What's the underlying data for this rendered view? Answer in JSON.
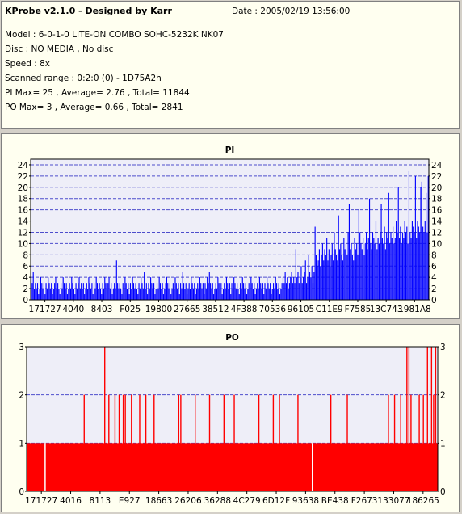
{
  "info": {
    "title": "KProbe v2.1.0 - Designed by Karr",
    "date": "Date : 2005/02/19 13:56:00",
    "lines": [
      "Model : 6-0-1-0 LITE-ON COMBO SOHC-5232K NK07",
      "Disc : NO MEDIA , No disc",
      "Speed : 8x",
      "Scanned range : 0:2:0 (0) - 1D75A2h",
      "PI Max= 25 , Average= 2.76 , Total= 11844",
      "PO Max= 3 , Average= 0.66 , Total= 2841"
    ]
  },
  "colors": {
    "pi": "#0000ff",
    "po": "#ff0000",
    "plot_bg": "#eeeef8",
    "grid": "#4d4dcc",
    "panel_bg": "#fffff0"
  },
  "chart_data": [
    {
      "type": "bar",
      "title": "PI",
      "ylim": [
        0,
        25
      ],
      "yticks": [
        0,
        2,
        4,
        6,
        8,
        10,
        12,
        14,
        16,
        18,
        20,
        22,
        24
      ],
      "xtick_labels": [
        "171727",
        "4040",
        "8403",
        "F025",
        "19800",
        "27665",
        "38512",
        "4F388",
        "70536",
        "96105",
        "C11E9",
        "F7585",
        "13C743",
        "1981A8"
      ],
      "grid": true,
      "values": [
        4,
        3,
        5,
        2,
        3,
        2,
        3,
        1,
        2,
        4,
        3,
        2,
        3,
        1,
        3,
        2,
        4,
        3,
        2,
        3,
        1,
        2,
        3,
        4,
        2,
        3,
        2,
        1,
        3,
        2,
        4,
        3,
        2,
        3,
        1,
        2,
        3,
        2,
        4,
        3,
        2,
        1,
        3,
        2,
        3,
        4,
        2,
        3,
        2,
        3,
        1,
        2,
        3,
        2,
        4,
        3,
        2,
        3,
        1,
        3,
        2,
        4,
        3,
        2,
        3,
        2,
        1,
        3,
        2,
        4,
        3,
        2,
        3,
        4,
        2,
        3,
        1,
        2,
        3,
        2,
        7,
        3,
        2,
        3,
        2,
        1,
        3,
        2,
        4,
        3,
        2,
        3,
        1,
        3,
        2,
        4,
        3,
        2,
        3,
        2,
        1,
        3,
        2,
        4,
        3,
        2,
        5,
        2,
        3,
        1,
        3,
        2,
        4,
        3,
        2,
        3,
        1,
        2,
        3,
        2,
        4,
        3,
        2,
        3,
        1,
        2,
        3,
        4,
        3,
        2,
        3,
        1,
        2,
        3,
        2,
        4,
        3,
        2,
        3,
        1,
        3,
        2,
        5,
        3,
        2,
        3,
        1,
        2,
        3,
        2,
        4,
        3,
        2,
        3,
        1,
        2,
        3,
        2,
        4,
        3,
        2,
        3,
        1,
        3,
        2,
        4,
        3,
        5,
        3,
        2,
        3,
        1,
        2,
        3,
        2,
        4,
        3,
        2,
        3,
        1,
        2,
        3,
        2,
        4,
        3,
        2,
        3,
        1,
        3,
        2,
        4,
        3,
        2,
        3,
        2,
        1,
        3,
        2,
        4,
        3,
        2,
        3,
        1,
        2,
        3,
        2,
        4,
        3,
        2,
        3,
        1,
        2,
        3,
        2,
        4,
        3,
        2,
        3,
        1,
        3,
        2,
        4,
        3,
        2,
        3,
        1,
        2,
        3,
        2,
        4,
        3,
        2,
        3,
        1,
        2,
        3,
        4,
        3,
        5,
        3,
        4,
        2,
        3,
        4,
        5,
        3,
        4,
        3,
        9,
        4,
        5,
        3,
        4,
        6,
        3,
        4,
        5,
        7,
        3,
        4,
        8,
        5,
        4,
        6,
        3,
        5,
        13,
        8,
        6,
        7,
        9,
        6,
        8,
        10,
        7,
        9,
        8,
        11,
        7,
        9,
        6,
        8,
        10,
        7,
        12,
        9,
        8,
        7,
        15,
        9,
        10,
        8,
        7,
        11,
        9,
        10,
        8,
        12,
        17,
        9,
        10,
        8,
        7,
        11,
        9,
        10,
        8,
        16,
        12,
        10,
        9,
        11,
        8,
        10,
        12,
        9,
        11,
        18,
        10,
        9,
        12,
        11,
        10,
        14,
        9,
        11,
        10,
        12,
        17,
        11,
        10,
        13,
        9,
        12,
        11,
        19,
        10,
        12,
        11,
        13,
        10,
        11,
        14,
        12,
        20,
        11,
        13,
        10,
        12,
        11,
        14,
        12,
        13,
        10,
        23,
        12,
        11,
        14,
        13,
        12,
        22,
        11,
        14,
        13,
        12,
        20,
        21,
        13,
        12,
        14,
        19,
        12,
        22
      ]
    },
    {
      "type": "bar",
      "title": "PO",
      "ylim": [
        0,
        3
      ],
      "yticks": [
        0,
        1,
        2,
        3
      ],
      "xtick_labels": [
        "171727",
        "4016",
        "8113",
        "E927",
        "18663",
        "26206",
        "36288",
        "4C279",
        "6D12F",
        "93638",
        "BE438",
        "F2673",
        "133077",
        "186265"
      ],
      "grid": true,
      "baseline": 1,
      "spikes": [
        [
          0.14,
          2
        ],
        [
          0.19,
          3
        ],
        [
          0.2,
          2
        ],
        [
          0.215,
          2
        ],
        [
          0.225,
          2
        ],
        [
          0.235,
          2
        ],
        [
          0.24,
          2
        ],
        [
          0.255,
          2
        ],
        [
          0.275,
          2
        ],
        [
          0.29,
          2
        ],
        [
          0.31,
          2
        ],
        [
          0.37,
          2
        ],
        [
          0.375,
          2
        ],
        [
          0.41,
          2
        ],
        [
          0.445,
          2
        ],
        [
          0.48,
          2
        ],
        [
          0.505,
          2
        ],
        [
          0.565,
          2
        ],
        [
          0.6,
          2
        ],
        [
          0.615,
          2
        ],
        [
          0.66,
          2
        ],
        [
          0.74,
          2
        ],
        [
          0.78,
          2
        ],
        [
          0.88,
          2
        ],
        [
          0.895,
          2
        ],
        [
          0.91,
          2
        ],
        [
          0.925,
          3
        ],
        [
          0.93,
          3
        ],
        [
          0.935,
          2
        ],
        [
          0.955,
          2
        ],
        [
          0.965,
          2
        ],
        [
          0.975,
          3
        ],
        [
          0.985,
          3
        ],
        [
          0.99,
          2
        ],
        [
          0.995,
          3
        ]
      ],
      "gaps": [
        0.045,
        0.695
      ]
    }
  ]
}
